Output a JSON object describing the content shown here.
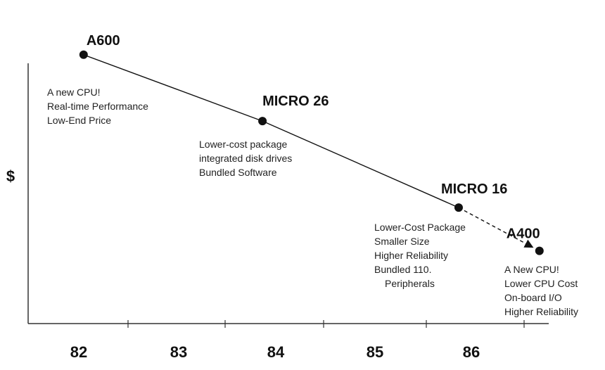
{
  "chart_data": {
    "type": "line",
    "ylabel": "$",
    "xlabel": "",
    "title": "",
    "grid": false,
    "legend": "none",
    "xlim": [
      81.9,
      86.35
    ],
    "ylim": [
      0,
      10
    ],
    "xticks": [
      82,
      83,
      84,
      85,
      86
    ],
    "tick_labels": [
      "82",
      "83",
      "84",
      "85",
      "86"
    ],
    "points": [
      {
        "name": "A600",
        "x": 82.35,
        "y": 9.2,
        "notes": [
          "A new CPU!",
          "Real-time Performance",
          "Low-End Price"
        ]
      },
      {
        "name": "MICRO 26",
        "x": 83.9,
        "y": 6.9,
        "notes": [
          "Lower-cost package",
          "integrated disk drives",
          "Bundled Software"
        ]
      },
      {
        "name": "MICRO 16",
        "x": 85.6,
        "y": 3.9,
        "notes": [
          "Lower-Cost Package",
          "Smaller Size",
          "Higher Reliability",
          "Bundled 110.",
          "Peripherals"
        ]
      },
      {
        "name": "A400",
        "x": 86.3,
        "y": 2.4,
        "notes": [
          "A New CPU!",
          "Lower CPU Cost",
          "On-board I/O",
          "Higher Reliability"
        ]
      }
    ],
    "segments": [
      {
        "from": "A600",
        "to": "MICRO 26",
        "style": "solid"
      },
      {
        "from": "MICRO 26",
        "to": "MICRO 16",
        "style": "solid"
      },
      {
        "from": "MICRO 16",
        "to": "A400",
        "style": "dashed-arrow"
      }
    ],
    "colors": {
      "ink": "#111111",
      "axis": "#333333"
    }
  }
}
